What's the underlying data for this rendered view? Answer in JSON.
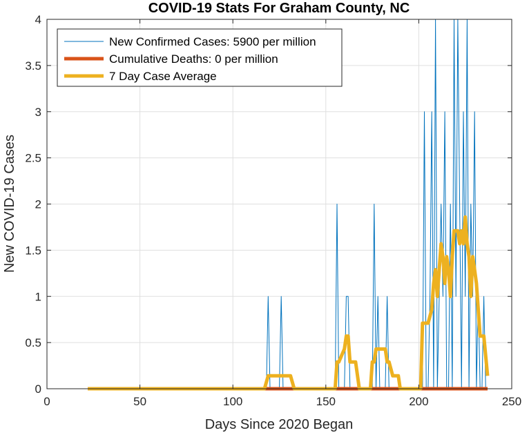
{
  "chart_data": {
    "type": "line",
    "title": "COVID-19 Stats For Graham County, NC",
    "xlabel": "Days Since 2020 Began",
    "ylabel": "New COVID-19 Cases",
    "xlim": [
      0,
      250
    ],
    "ylim": [
      0,
      4
    ],
    "xticks": [
      0,
      50,
      100,
      150,
      200,
      250
    ],
    "yticks": [
      0,
      0.5,
      1,
      1.5,
      2,
      2.5,
      3,
      3.5,
      4
    ],
    "xtick_labels": [
      "0",
      "50",
      "100",
      "150",
      "200",
      "250"
    ],
    "ytick_labels": [
      "0",
      "0.5",
      "1",
      "1.5",
      "2",
      "2.5",
      "3",
      "3.5",
      "4"
    ],
    "grid": true,
    "legend_position": "top-left",
    "colors": {
      "cases": "#0072BD",
      "deaths": "#D95319",
      "average": "#EDB120"
    },
    "series": [
      {
        "name": "New Confirmed Cases: 5900 per million",
        "color": "#0072BD",
        "x": [
          22,
          118,
          119,
          120,
          125,
          126,
          127,
          155,
          156,
          157,
          160,
          161,
          162,
          163,
          175,
          176,
          177,
          178,
          179,
          182,
          183,
          184,
          202,
          203,
          204,
          205,
          206,
          207,
          208,
          209,
          210,
          211,
          212,
          213,
          214,
          215,
          216,
          217,
          218,
          219,
          220,
          221,
          222,
          223,
          224,
          225,
          226,
          227,
          228,
          229,
          230,
          231,
          232,
          233,
          234,
          235,
          236,
          237
        ],
        "y": [
          0,
          0,
          1,
          0,
          0,
          1,
          0,
          0,
          2,
          0,
          0,
          1,
          1,
          0,
          0,
          2,
          0,
          1,
          0,
          0,
          1,
          0,
          0,
          3,
          0,
          0,
          1,
          3,
          0,
          4,
          0,
          1,
          2,
          1,
          3,
          0,
          0,
          2,
          0,
          4,
          1,
          4,
          2,
          0,
          3,
          1,
          4,
          0,
          2,
          1,
          3,
          0,
          1,
          0,
          0,
          1,
          0,
          0
        ]
      },
      {
        "name": "Cumulative Deaths: 0 per million",
        "color": "#D95319",
        "x": [
          22,
          237
        ],
        "y": [
          0,
          0
        ]
      },
      {
        "name": "7 Day Case Average",
        "color": "#EDB120",
        "x": [
          22,
          117,
          119,
          120,
          125,
          126,
          131,
          133,
          155,
          156,
          157,
          160,
          161,
          162,
          163,
          165,
          166,
          168,
          174,
          175,
          176,
          177,
          178,
          182,
          183,
          184,
          186,
          189,
          190,
          201,
          202,
          203,
          205,
          207,
          208,
          209,
          210,
          211,
          212,
          213,
          214,
          215,
          216,
          217,
          218,
          219,
          220,
          221,
          222,
          223,
          224,
          225,
          226,
          227,
          228,
          229,
          230,
          231,
          232,
          233,
          234,
          235,
          237
        ],
        "y": [
          0,
          0,
          0.14,
          0.14,
          0.14,
          0.14,
          0.14,
          0,
          0,
          0.29,
          0.29,
          0.43,
          0.57,
          0.57,
          0.29,
          0.29,
          0.29,
          0,
          0,
          0.29,
          0.29,
          0.43,
          0.43,
          0.43,
          0.29,
          0.29,
          0.14,
          0.14,
          0,
          0,
          0.71,
          0.71,
          0.71,
          0.86,
          1.14,
          1.29,
          1.0,
          1.29,
          1.57,
          1.43,
          1.14,
          1.43,
          1.29,
          1.0,
          1.43,
          1.71,
          1.71,
          1.71,
          1.57,
          1.71,
          1.57,
          1.86,
          1.57,
          1.43,
          1.0,
          1.43,
          1.29,
          1.14,
          0.86,
          0.57,
          0.57,
          0.57,
          0.14
        ]
      }
    ]
  }
}
